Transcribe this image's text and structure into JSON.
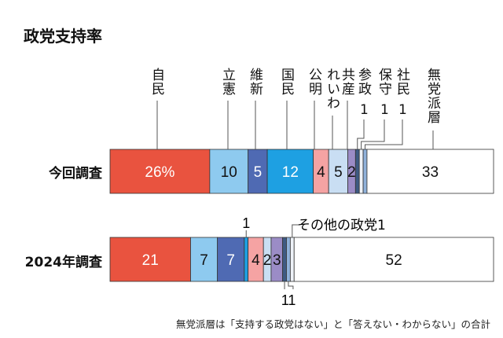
{
  "chart_data": {
    "type": "bar",
    "stacked": true,
    "orientation": "horizontal",
    "title": "政党支持率",
    "unit": "%",
    "xlim": [
      0,
      100
    ],
    "categories": [
      "今回調査",
      "2024年調査"
    ],
    "series": [
      {
        "name": "自民",
        "values": [
          26,
          21
        ],
        "color": "#e9533f"
      },
      {
        "name": "立憲",
        "values": [
          10,
          7
        ],
        "color": "#8ecaef"
      },
      {
        "name": "維新",
        "values": [
          5,
          7
        ],
        "color": "#4f6ab3"
      },
      {
        "name": "国民",
        "values": [
          12,
          1
        ],
        "color": "#1ea0e2"
      },
      {
        "name": "公明",
        "values": [
          4,
          4
        ],
        "color": "#f5a3a3"
      },
      {
        "name": "れいわ",
        "values": [
          5,
          2
        ],
        "color": "#c9def3"
      },
      {
        "name": "共産",
        "values": [
          2,
          3
        ],
        "color": "#9b8cc6"
      },
      {
        "name": "参政",
        "values": [
          1,
          1
        ],
        "color": "#3e5a82"
      },
      {
        "name": "保守",
        "values": [
          1,
          0
        ],
        "color": "#eef2f8"
      },
      {
        "name": "社民",
        "values": [
          1,
          1
        ],
        "color": "#8fb1da"
      },
      {
        "name": "その他の政党",
        "values": [
          0,
          1
        ],
        "color": "#eef2f8"
      },
      {
        "name": "無党派層",
        "values": [
          33,
          52
        ],
        "color": "#ffffff"
      }
    ],
    "data_labels": [
      [
        "26%",
        "10",
        "5",
        "12",
        "4",
        "5",
        "2",
        "",
        "",
        "",
        "",
        "33"
      ],
      [
        "21",
        "7",
        "7",
        "",
        "4",
        "2",
        "3",
        "",
        "",
        "",
        "",
        "52"
      ]
    ],
    "callouts": {
      "current_small": [
        "1",
        "1",
        "1"
      ],
      "prev_kokumin": "1",
      "prev_other": "その他の政党1",
      "prev_bottom": "11"
    },
    "footnote": "無党派層は「支持する政党はない」と「答えない・わからない」の合計"
  }
}
